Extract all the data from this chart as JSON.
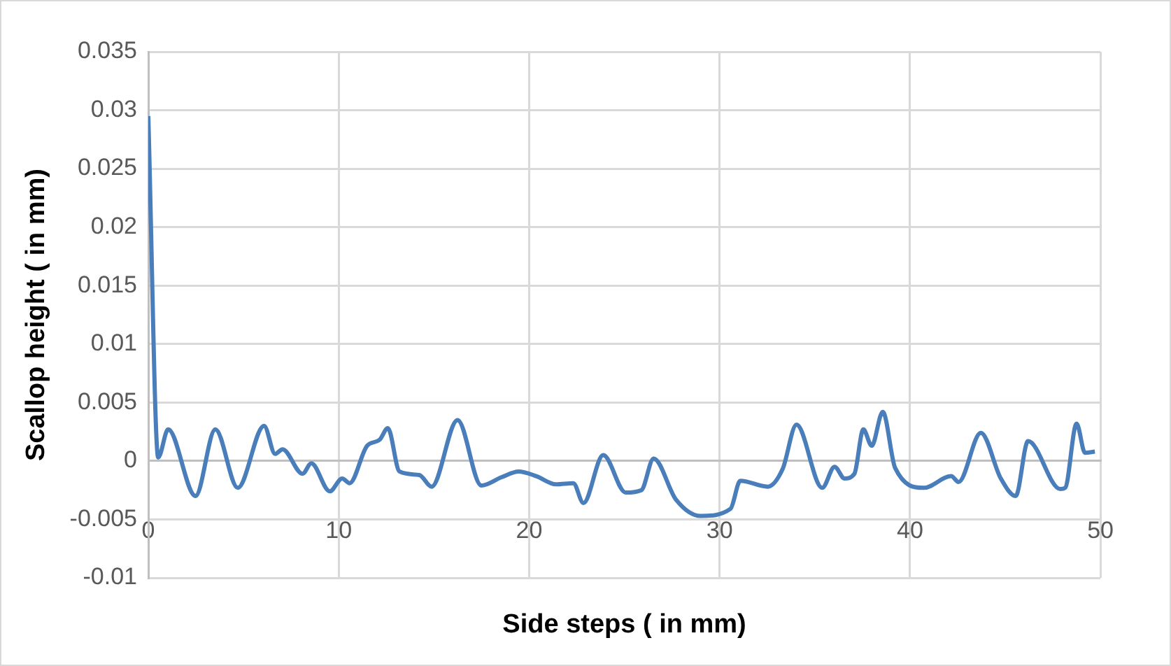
{
  "chart_data": {
    "type": "line",
    "xlabel": "Side steps ( in mm)",
    "ylabel": "Scallop height ( in mm)",
    "x": [
      0,
      0.52,
      1.04,
      2.48,
      3.52,
      4.7,
      6.08,
      6.66,
      7.05,
      8.1,
      8.56,
      9.53,
      10.18,
      10.57,
      11.49,
      12.14,
      12.58,
      13.19,
      14.23,
      14.88,
      16.24,
      17.49,
      18.54,
      19.45,
      20.37,
      21.41,
      22.32,
      22.85,
      23.89,
      25.07,
      25.89,
      26.54,
      27.71,
      29.01,
      30.57,
      31.09,
      32.53,
      33.31,
      34.04,
      35.39,
      36.04,
      36.56,
      37.08,
      37.55,
      37.99,
      38.57,
      39.22,
      40.73,
      42.16,
      42.55,
      43.72,
      44.77,
      45.55,
      46.2,
      47.89,
      48.15,
      48.75,
      49.19,
      49.71
    ],
    "values": [
      0.0295,
      0.0003,
      0.0027,
      -0.003,
      0.0027,
      -0.0023,
      0.003,
      0.0006,
      0.001,
      -0.0011,
      -0.0002,
      -0.0026,
      -0.0015,
      -0.0019,
      0.0013,
      0.0018,
      0.0028,
      -0.0009,
      -0.0012,
      -0.0022,
      0.0035,
      -0.0021,
      -0.0014,
      -0.0009,
      -0.0013,
      -0.002,
      -0.0019,
      -0.0036,
      0.0005,
      -0.0027,
      -0.0025,
      0.0002,
      -0.0033,
      -0.0047,
      -0.0041,
      -0.0017,
      -0.0022,
      -0.0007,
      0.0031,
      -0.0023,
      -0.0005,
      -0.0015,
      -0.0011,
      0.0027,
      0.0013,
      0.0042,
      -0.0006,
      -0.0023,
      -0.0013,
      -0.0018,
      0.0024,
      -0.0015,
      -0.003,
      0.0017,
      -0.0024,
      -0.0023,
      0.0032,
      0.0007,
      0.0008
    ],
    "color": "#4a7ebb",
    "xlim": [
      0,
      50
    ],
    "xticks": [
      0,
      10,
      20,
      30,
      40,
      50
    ],
    "ylim": [
      -0.01,
      0.035
    ],
    "yticks": [
      -0.01,
      -0.005,
      0,
      0.005,
      0.01,
      0.015,
      0.02,
      0.025,
      0.03,
      0.035
    ],
    "grid": true,
    "legend": false,
    "marker": "none",
    "line_style": "solid"
  }
}
